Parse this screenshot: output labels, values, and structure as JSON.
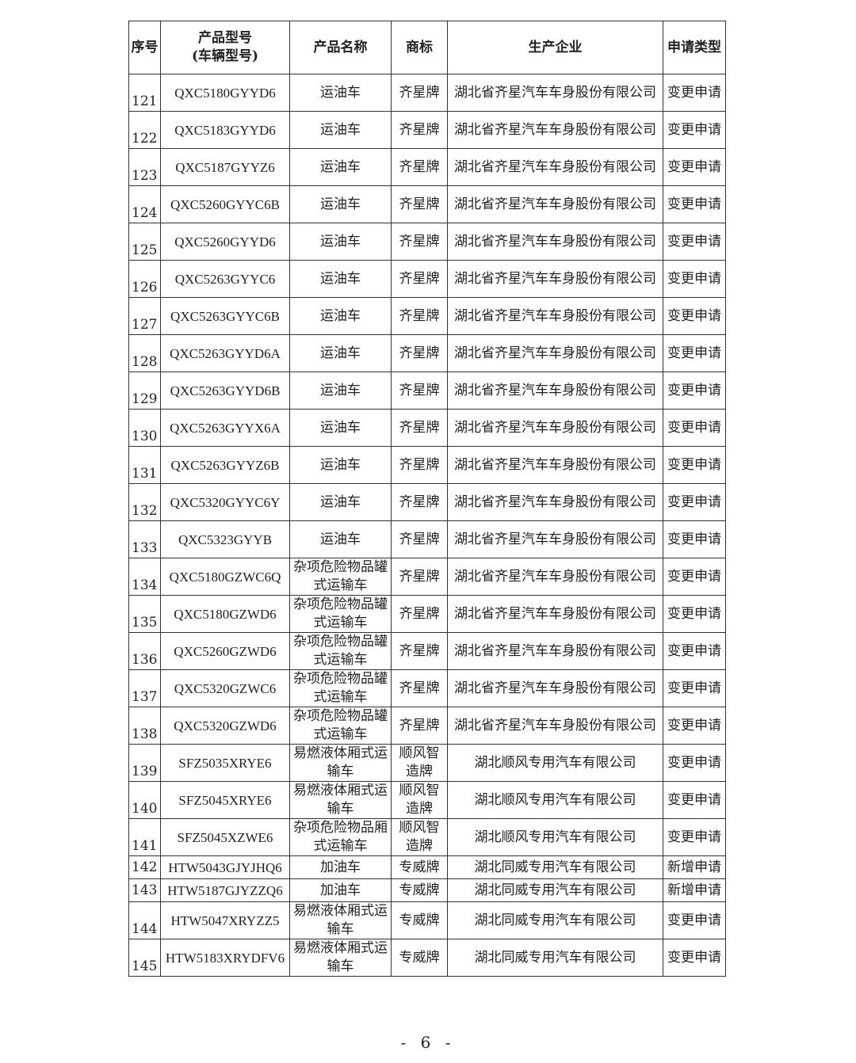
{
  "headers": [
    "序号",
    "产品型号\n(车辆型号)",
    "产品名称",
    "商标",
    "生产企业",
    "申请类型"
  ],
  "rows": [
    [
      "121",
      "QXC5180GYYD6",
      "运油车",
      "齐星牌",
      "湖北省齐星汽车车身股份有限公司",
      "变更申请"
    ],
    [
      "122",
      "QXC5183GYYD6",
      "运油车",
      "齐星牌",
      "湖北省齐星汽车车身股份有限公司",
      "变更申请"
    ],
    [
      "123",
      "QXC5187GYYZ6",
      "运油车",
      "齐星牌",
      "湖北省齐星汽车车身股份有限公司",
      "变更申请"
    ],
    [
      "124",
      "QXC5260GYYC6B",
      "运油车",
      "齐星牌",
      "湖北省齐星汽车车身股份有限公司",
      "变更申请"
    ],
    [
      "125",
      "QXC5260GYYD6",
      "运油车",
      "齐星牌",
      "湖北省齐星汽车车身股份有限公司",
      "变更申请"
    ],
    [
      "126",
      "QXC5263GYYC6",
      "运油车",
      "齐星牌",
      "湖北省齐星汽车车身股份有限公司",
      "变更申请"
    ],
    [
      "127",
      "QXC5263GYYC6B",
      "运油车",
      "齐星牌",
      "湖北省齐星汽车车身股份有限公司",
      "变更申请"
    ],
    [
      "128",
      "QXC5263GYYD6A",
      "运油车",
      "齐星牌",
      "湖北省齐星汽车车身股份有限公司",
      "变更申请"
    ],
    [
      "129",
      "QXC5263GYYD6B",
      "运油车",
      "齐星牌",
      "湖北省齐星汽车车身股份有限公司",
      "变更申请"
    ],
    [
      "130",
      "QXC5263GYYX6A",
      "运油车",
      "齐星牌",
      "湖北省齐星汽车车身股份有限公司",
      "变更申请"
    ],
    [
      "131",
      "QXC5263GYYZ6B",
      "运油车",
      "齐星牌",
      "湖北省齐星汽车车身股份有限公司",
      "变更申请"
    ],
    [
      "132",
      "QXC5320GYYC6Y",
      "运油车",
      "齐星牌",
      "湖北省齐星汽车车身股份有限公司",
      "变更申请"
    ],
    [
      "133",
      "QXC5323GYYB",
      "运油车",
      "齐星牌",
      "湖北省齐星汽车车身股份有限公司",
      "变更申请"
    ],
    [
      "134",
      "QXC5180GZWC6Q",
      "杂项危险物品罐式运输车",
      "齐星牌",
      "湖北省齐星汽车车身股份有限公司",
      "变更申请"
    ],
    [
      "135",
      "QXC5180GZWD6",
      "杂项危险物品罐式运输车",
      "齐星牌",
      "湖北省齐星汽车车身股份有限公司",
      "变更申请"
    ],
    [
      "136",
      "QXC5260GZWD6",
      "杂项危险物品罐式运输车",
      "齐星牌",
      "湖北省齐星汽车车身股份有限公司",
      "变更申请"
    ],
    [
      "137",
      "QXC5320GZWC6",
      "杂项危险物品罐式运输车",
      "齐星牌",
      "湖北省齐星汽车车身股份有限公司",
      "变更申请"
    ],
    [
      "138",
      "QXC5320GZWD6",
      "杂项危险物品罐式运输车",
      "齐星牌",
      "湖北省齐星汽车车身股份有限公司",
      "变更申请"
    ],
    [
      "139",
      "SFZ5035XRYE6",
      "易燃液体厢式运输车",
      "顺风智造牌",
      "湖北顺风专用汽车有限公司",
      "变更申请"
    ],
    [
      "140",
      "SFZ5045XRYE6",
      "易燃液体厢式运输车",
      "顺风智造牌",
      "湖北顺风专用汽车有限公司",
      "变更申请"
    ],
    [
      "141",
      "SFZ5045XZWE6",
      "杂项危险物品厢式运输车",
      "顺风智造牌",
      "湖北顺风专用汽车有限公司",
      "变更申请"
    ],
    [
      "142",
      "HTW5043GJYJHQ6",
      "加油车",
      "专威牌",
      "湖北同威专用汽车有限公司",
      "新增申请"
    ],
    [
      "143",
      "HTW5187GJYZZQ6",
      "加油车",
      "专威牌",
      "湖北同威专用汽车有限公司",
      "新增申请"
    ],
    [
      "144",
      "HTW5047XRYZZ5",
      "易燃液体厢式运输车",
      "专威牌",
      "湖北同威专用汽车有限公司",
      "变更申请"
    ],
    [
      "145",
      "HTW5183XRYDFV6",
      "易燃液体厢式运输车",
      "专威牌",
      "湖北同威专用汽车有限公司",
      "变更申请"
    ]
  ],
  "page_number": "- 6 -"
}
